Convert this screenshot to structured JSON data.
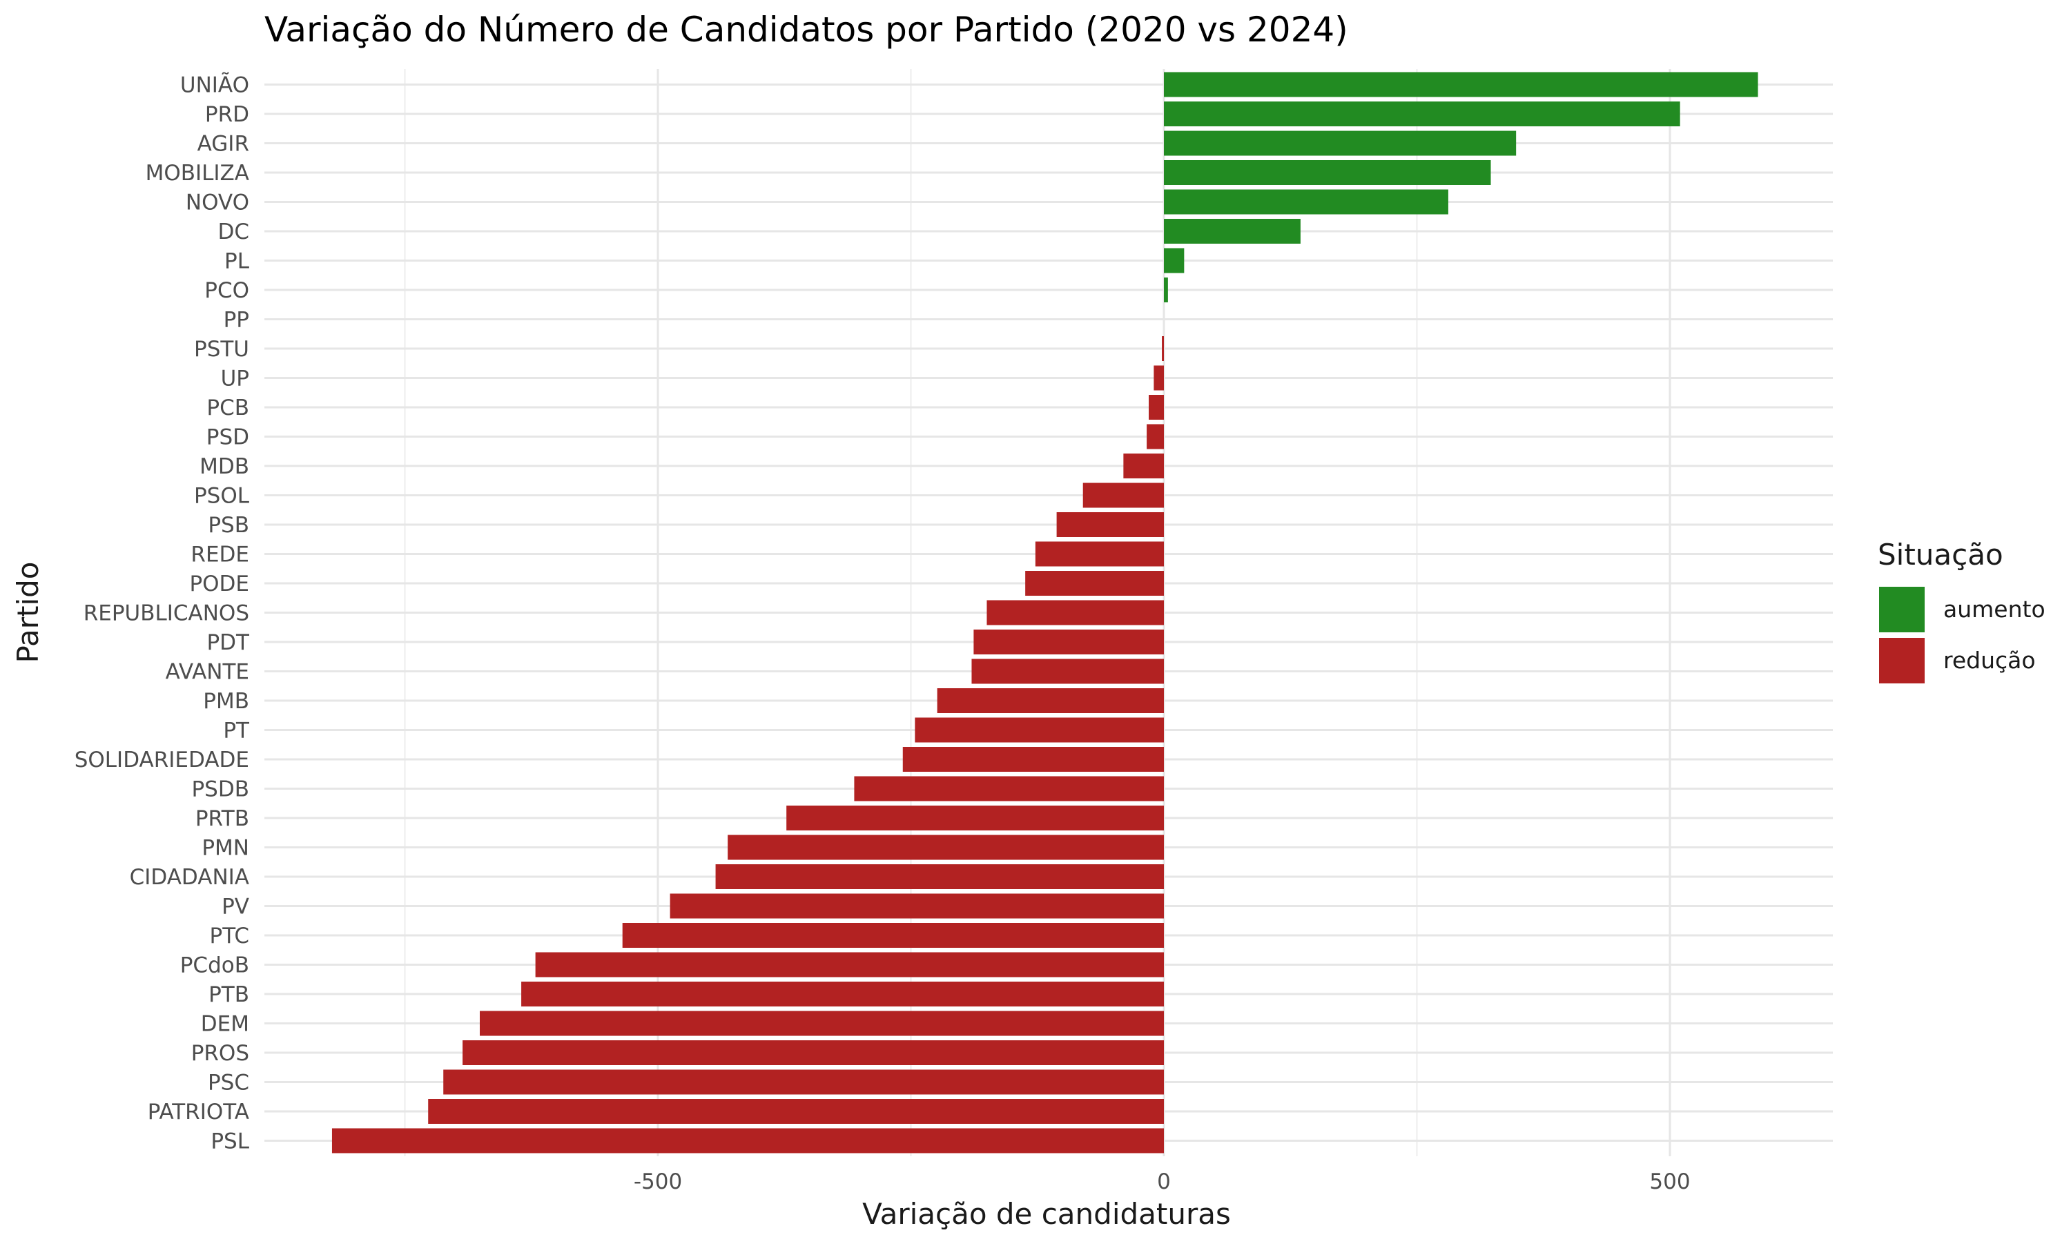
{
  "chart_data": {
    "type": "bar",
    "orientation": "horizontal",
    "title": "Variação do Número de Candidatos por Partido (2020 vs 2024)",
    "xlabel": "Variação de candidaturas",
    "ylabel": "Partido",
    "xlim": [
      -870,
      660
    ],
    "xticks": [
      -500,
      0,
      500
    ],
    "xtick_labels": [
      "-500",
      "0",
      "500"
    ],
    "grid": true,
    "legend": {
      "title": "Situação",
      "placement": "right",
      "entries": [
        {
          "label": "aumento",
          "color": "#228b22"
        },
        {
          "label": "redução",
          "color": "#b22222"
        }
      ]
    },
    "categories": [
      "UNIÃO",
      "PRD",
      "AGIR",
      "MOBILIZA",
      "NOVO",
      "DC",
      "PL",
      "PCO",
      "PP",
      "PSTU",
      "UP",
      "PCB",
      "PSD",
      "MDB",
      "PSOL",
      "PSB",
      "REDE",
      "PODE",
      "REPUBLICANOS",
      "PDT",
      "AVANTE",
      "PMB",
      "PT",
      "SOLIDARIEDADE",
      "PSDB",
      "PRTB",
      "PMN",
      "CIDADANIA",
      "PV",
      "PTC",
      "PCdoB",
      "PTB",
      "DEM",
      "PROS",
      "PSC",
      "PATRIOTA",
      "PSL"
    ],
    "values": [
      587,
      510,
      348,
      323,
      281,
      135,
      20,
      4,
      0,
      -2,
      -10,
      -15,
      -17,
      -40,
      -80,
      -106,
      -127,
      -137,
      -175,
      -188,
      -190,
      -224,
      -246,
      -258,
      -306,
      -373,
      -431,
      -443,
      -488,
      -535,
      -621,
      -635,
      -676,
      -693,
      -712,
      -727,
      -822
    ],
    "situacao": [
      "aumento",
      "aumento",
      "aumento",
      "aumento",
      "aumento",
      "aumento",
      "aumento",
      "aumento",
      "aumento",
      "redução",
      "redução",
      "redução",
      "redução",
      "redução",
      "redução",
      "redução",
      "redução",
      "redução",
      "redução",
      "redução",
      "redução",
      "redução",
      "redução",
      "redução",
      "redução",
      "redução",
      "redução",
      "redução",
      "redução",
      "redução",
      "redução",
      "redução",
      "redução",
      "redução",
      "redução",
      "redução",
      "redução"
    ]
  }
}
